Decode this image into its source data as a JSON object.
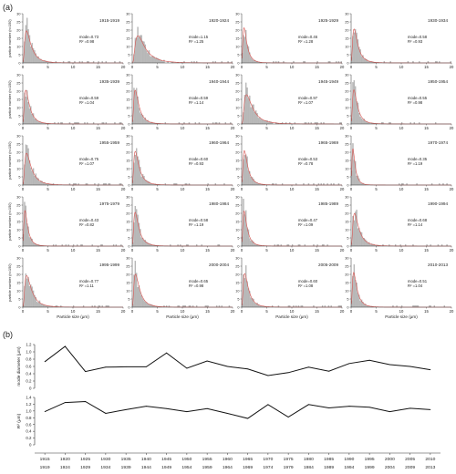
{
  "figure": {
    "label_a": "(a)",
    "label_b": "(b)"
  },
  "chart_data": [
    {
      "type": "bar",
      "description": "Particle size distributions, 5-year periods (20 panels, 4 columns x 5 rows)",
      "xlabel": "Particle size (μm)",
      "ylabel": "particle number (n=150)",
      "xlim": [
        0,
        20
      ],
      "ylim": [
        0,
        30
      ],
      "xticks": [
        "0",
        "5",
        "10",
        "15",
        "20"
      ],
      "yticks": [
        "0",
        "5",
        "10",
        "15",
        "20",
        "25",
        "30"
      ],
      "panels": [
        {
          "period": "1915-1919",
          "mode_text": "mode=0.73",
          "r2_text": "R² =0.98",
          "mode": 0.73
        },
        {
          "period": "1920-1924",
          "mode_text": "mode=1.15",
          "r2_text": "R² =1.25",
          "mode": 1.15
        },
        {
          "period": "1925-1929",
          "mode_text": "mode=0.46",
          "r2_text": "R² =1.28",
          "mode": 0.46
        },
        {
          "period": "1930-1934",
          "mode_text": "mode=0.58",
          "r2_text": "R² =0.93",
          "mode": 0.58
        },
        {
          "period": "1935-1939",
          "mode_text": "mode=0.59",
          "r2_text": "R² =1.04",
          "mode": 0.59
        },
        {
          "period": "1940-1944",
          "mode_text": "mode=0.59",
          "r2_text": "R² =1.14",
          "mode": 0.59
        },
        {
          "period": "1945-1949",
          "mode_text": "mode=0.97",
          "r2_text": "R² =1.07",
          "mode": 0.97
        },
        {
          "period": "1950-1954",
          "mode_text": "mode=0.55",
          "r2_text": "R² =0.98",
          "mode": 0.55
        },
        {
          "period": "1955-1959",
          "mode_text": "mode=0.75",
          "r2_text": "R² =1.07",
          "mode": 0.75
        },
        {
          "period": "1960-1964",
          "mode_text": "mode=0.60",
          "r2_text": "R² =0.93",
          "mode": 0.6
        },
        {
          "period": "1965-1969",
          "mode_text": "mode=0.53",
          "r2_text": "R² =0.78",
          "mode": 0.53
        },
        {
          "period": "1970-1974",
          "mode_text": "mode=0.35",
          "r2_text": "R² =1.19",
          "mode": 0.35
        },
        {
          "period": "1975-1979",
          "mode_text": "mode=0.43",
          "r2_text": "R² =0.82",
          "mode": 0.43
        },
        {
          "period": "1980-1984",
          "mode_text": "mode=0.58",
          "r2_text": "R² =1.19",
          "mode": 0.58
        },
        {
          "period": "1985-1989",
          "mode_text": "mode=0.47",
          "r2_text": "R² =1.09",
          "mode": 0.47
        },
        {
          "period": "1990-1994",
          "mode_text": "mode=0.68",
          "r2_text": "R² =1.14",
          "mode": 0.68
        },
        {
          "period": "1995-1999",
          "mode_text": "mode=0.77",
          "r2_text": "R² =1.11",
          "mode": 0.77
        },
        {
          "period": "2000-2004",
          "mode_text": "mode=0.65",
          "r2_text": "R² =0.98",
          "mode": 0.65
        },
        {
          "period": "2005-2009",
          "mode_text": "mode=0.60",
          "r2_text": "R² =1.08",
          "mode": 0.6
        },
        {
          "period": "2010-2013",
          "mode_text": "mode=0.51",
          "r2_text": "R² =1.04",
          "mode": 0.51
        }
      ],
      "colors": {
        "bars": "#b8b8b8",
        "fit_curve": "#d9534f"
      }
    },
    {
      "type": "line",
      "description": "Mode diameter by period",
      "ylabel": "mode diameter (μm)",
      "ylim": [
        0,
        1.2
      ],
      "yticks": [
        "0",
        "0.2",
        "0.4",
        "0.6",
        "0.8",
        "1.0",
        "1.2"
      ],
      "values": [
        0.73,
        1.15,
        0.46,
        0.58,
        0.59,
        0.59,
        0.97,
        0.55,
        0.75,
        0.6,
        0.53,
        0.35,
        0.43,
        0.58,
        0.47,
        0.68,
        0.77,
        0.65,
        0.6,
        0.51
      ]
    },
    {
      "type": "line",
      "description": "R² by period",
      "ylabel": "R² (μm)",
      "ylim": [
        0,
        1.4
      ],
      "yticks": [
        "0",
        "0.2",
        "0.4",
        "0.6",
        "0.8",
        "1.0",
        "1.2",
        "1.4"
      ],
      "values": [
        0.98,
        1.25,
        1.28,
        0.93,
        1.04,
        1.14,
        1.07,
        0.98,
        1.07,
        0.93,
        0.78,
        1.19,
        0.82,
        1.19,
        1.09,
        1.14,
        1.11,
        0.98,
        1.08,
        1.04
      ]
    }
  ],
  "x_categories_top": [
    "1915",
    "1920",
    "1925",
    "1930",
    "1935",
    "1940",
    "1945",
    "1950",
    "1955",
    "1960",
    "1965",
    "1970",
    "1975",
    "1980",
    "1985",
    "1990",
    "1995",
    "2000",
    "2005",
    "2010"
  ],
  "x_categories_bottom": [
    "1919",
    "1924",
    "1929",
    "1934",
    "1939",
    "1944",
    "1949",
    "1954",
    "1959",
    "1964",
    "1969",
    "1974",
    "1979",
    "1984",
    "1989",
    "1994",
    "1999",
    "2004",
    "2009",
    "2013"
  ]
}
